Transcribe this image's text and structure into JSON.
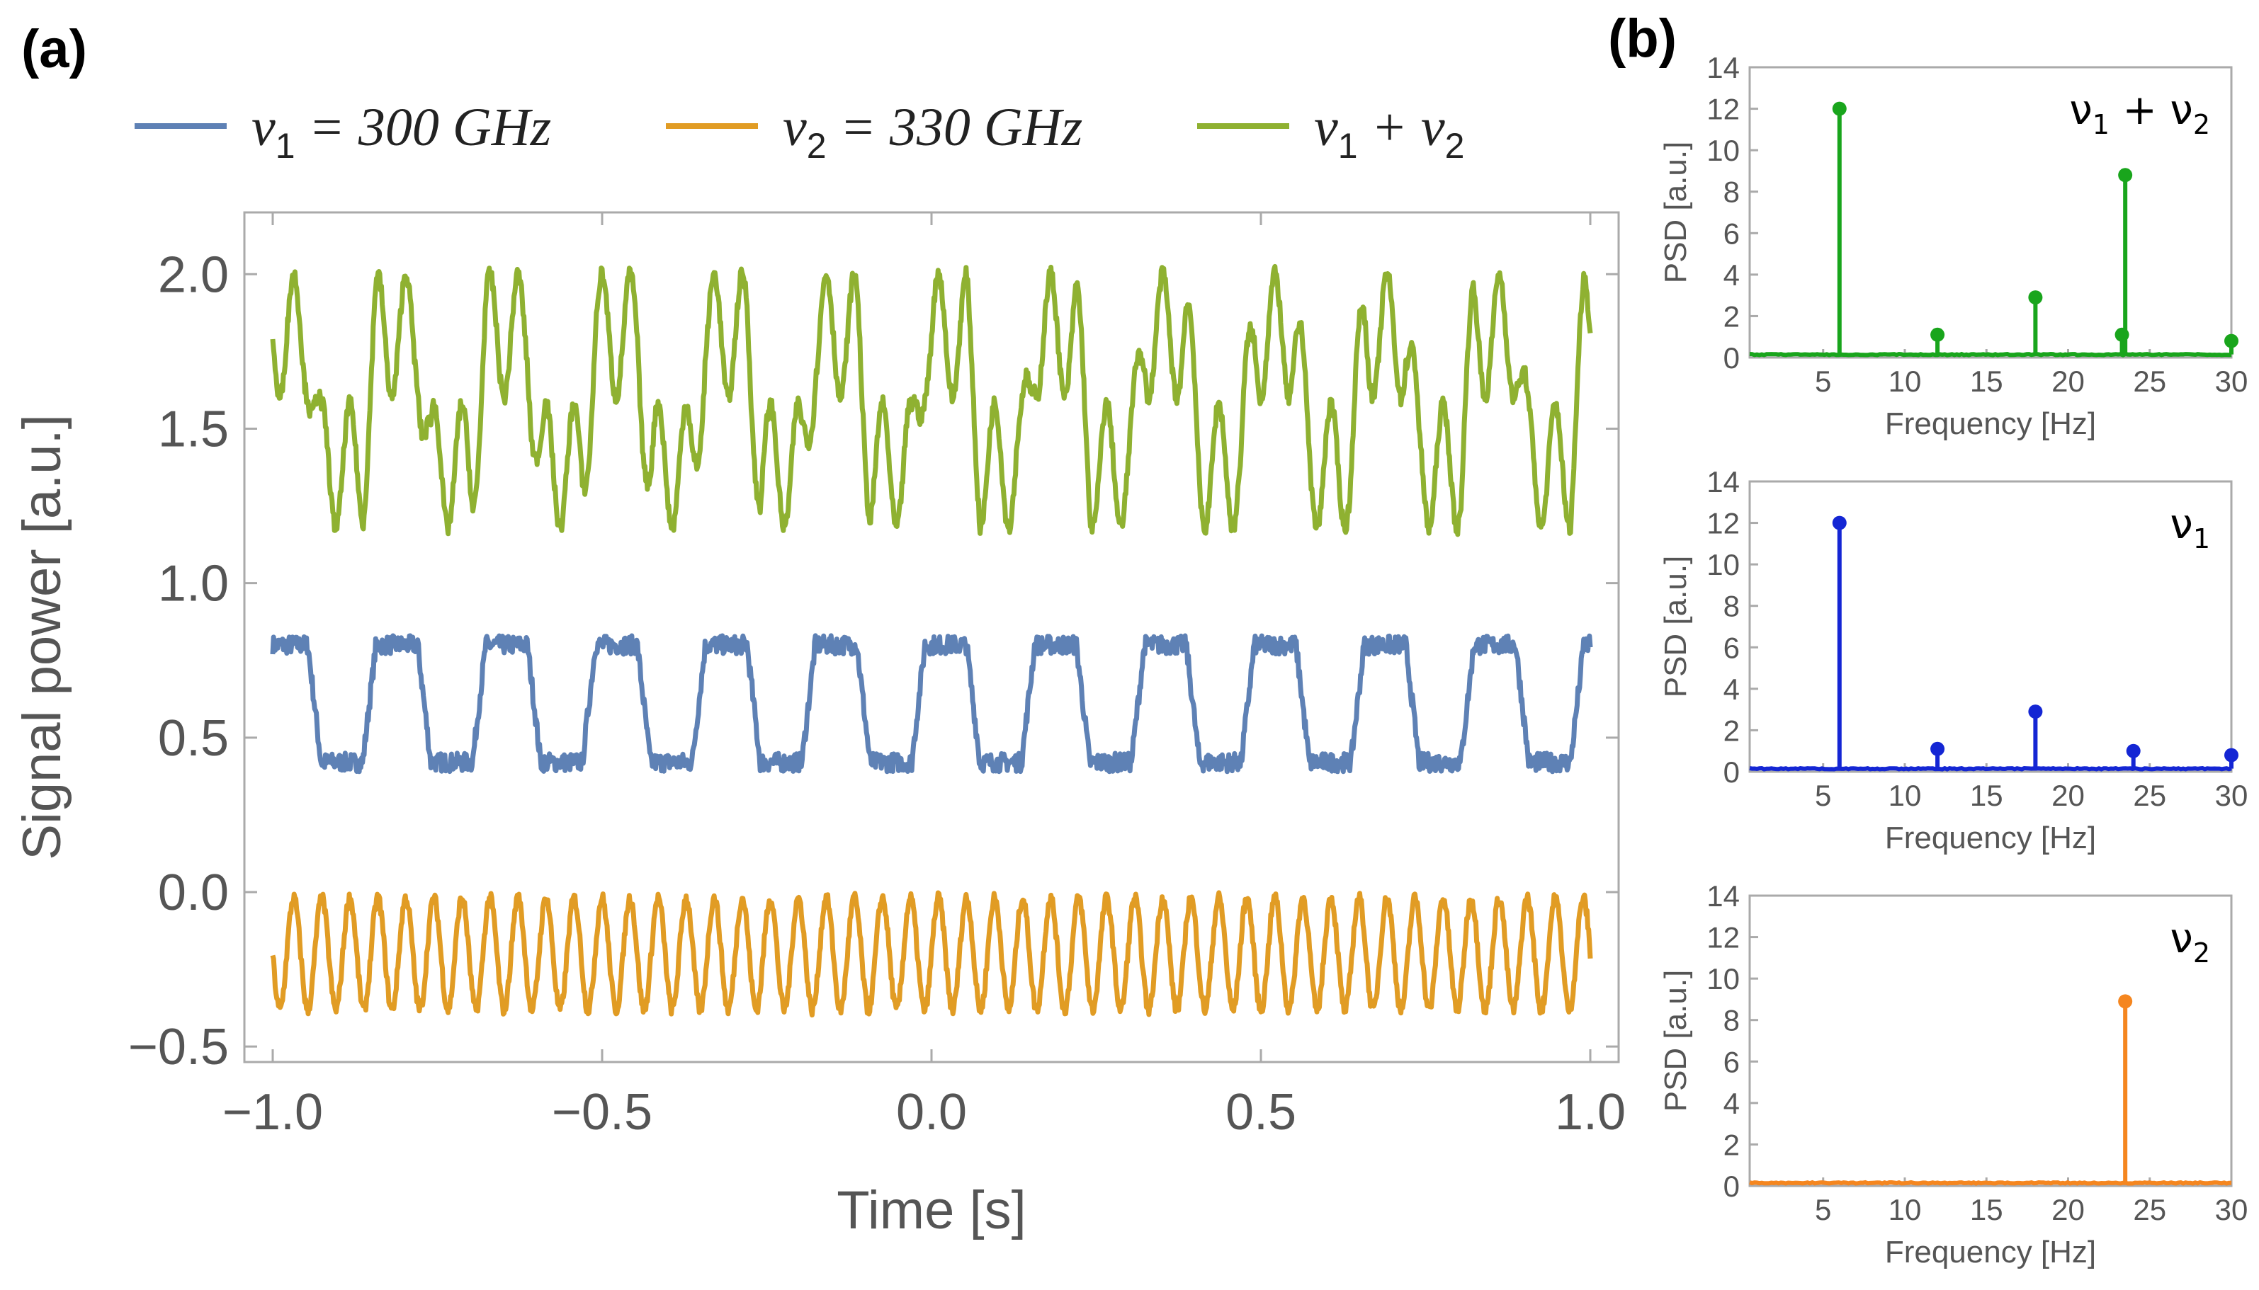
{
  "panel_labels": {
    "a": "(a)",
    "b": "(b)"
  },
  "chart_data": [
    {
      "id": "a",
      "type": "line",
      "title": "",
      "xlabel": "Time [s]",
      "ylabel": "Signal power [a.u.]",
      "xlim": [
        -1.0,
        1.0
      ],
      "ylim": [
        -0.55,
        2.2
      ],
      "xticks": [
        -1.0,
        -0.5,
        0.0,
        0.5,
        1.0
      ],
      "xtick_labels": [
        "−1.0",
        "−0.5",
        "0.0",
        "0.5",
        "1.0"
      ],
      "yticks": [
        -0.5,
        0.0,
        0.5,
        1.0,
        1.5,
        2.0
      ],
      "ytick_labels": [
        "−0.5",
        "0.0",
        "0.5",
        "1.0",
        "1.5",
        "2.0"
      ],
      "legend_placement": "top",
      "series": [
        {
          "name": "v1 = 300 GHz",
          "legend": {
            "sym": "ν",
            "sub": "1",
            "rest": " = 300 GHz"
          },
          "color": "#5E81B5",
          "kind": "square",
          "freq_hz": 6,
          "low": 0.42,
          "high": 0.8,
          "mean": 0.6
        },
        {
          "name": "v2 = 330 GHz",
          "legend": {
            "sym": "ν",
            "sub": "2",
            "rest": " = 330 GHz"
          },
          "color": "#E19C24",
          "kind": "sine",
          "freq_hz": 23.5,
          "low": -0.38,
          "high": -0.02,
          "mean": -0.2
        },
        {
          "name": "v1 + v2",
          "legend": {
            "sym": "ν",
            "sub": "1",
            "rest": " + ",
            "sym2": "ν",
            "sub2": "2"
          },
          "color": "#8FB131",
          "kind": "sum",
          "freq_hz": 6,
          "low": 1.2,
          "high": 2.0,
          "mean": 1.6
        }
      ]
    },
    {
      "id": "b1",
      "type": "stem",
      "title": "ν1 + ν2",
      "title_parts": {
        "sym": "ν",
        "sub": "1",
        "rest": " + ",
        "sym2": "ν",
        "sub2": "2"
      },
      "xlabel": "Frequency [Hz]",
      "ylabel": "PSD [a.u.]",
      "xlim": [
        0.5,
        30
      ],
      "ylim": [
        0,
        14
      ],
      "xticks": [
        5,
        10,
        15,
        20,
        25,
        30
      ],
      "yticks": [
        0,
        2,
        4,
        6,
        8,
        10,
        12,
        14
      ],
      "color": "#19A51C",
      "x": [
        6,
        12,
        18,
        23.3,
        23.5,
        30
      ],
      "values": [
        12,
        1.1,
        2.9,
        1.1,
        8.8,
        0.8
      ]
    },
    {
      "id": "b2",
      "type": "stem",
      "title": "ν1",
      "title_parts": {
        "sym": "ν",
        "sub": "1"
      },
      "xlabel": "Frequency [Hz]",
      "ylabel": "PSD [a.u.]",
      "xlim": [
        0.5,
        30
      ],
      "ylim": [
        0,
        14
      ],
      "xticks": [
        5,
        10,
        15,
        20,
        25,
        30
      ],
      "yticks": [
        0,
        2,
        4,
        6,
        8,
        10,
        12,
        14
      ],
      "color": "#1426D4",
      "x": [
        6,
        12,
        18,
        24,
        30
      ],
      "values": [
        12,
        1.1,
        2.9,
        1.0,
        0.8
      ]
    },
    {
      "id": "b3",
      "type": "stem",
      "title": "ν2",
      "title_parts": {
        "sym": "ν",
        "sub": "2"
      },
      "xlabel": "Frequency [Hz]",
      "ylabel": "PSD [a.u.]",
      "xlim": [
        0.5,
        30
      ],
      "ylim": [
        0,
        14
      ],
      "xticks": [
        5,
        10,
        15,
        20,
        25,
        30
      ],
      "yticks": [
        0,
        2,
        4,
        6,
        8,
        10,
        12,
        14
      ],
      "color": "#F5861F",
      "x": [
        23.5
      ],
      "values": [
        8.9
      ]
    }
  ]
}
